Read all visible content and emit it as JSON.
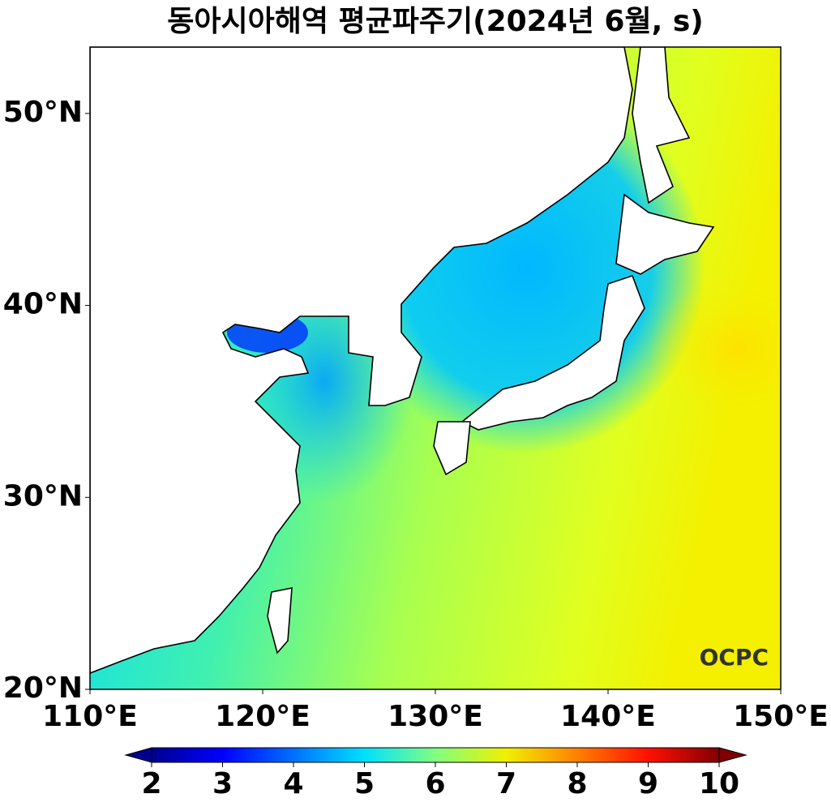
{
  "chart_data": {
    "type": "map",
    "title": "동아시아해역 평균파주기(2024년 6월, s)",
    "xlim": [
      110,
      150
    ],
    "ylim": [
      20,
      53.46
    ],
    "xticks": [
      {
        "value": 110,
        "label": "110°E"
      },
      {
        "value": 120,
        "label": "120°E"
      },
      {
        "value": 130,
        "label": "130°E"
      },
      {
        "value": 140,
        "label": "140°E"
      },
      {
        "value": 150,
        "label": "150°E"
      }
    ],
    "yticks": [
      {
        "value": 20,
        "label": "20°N"
      },
      {
        "value": 30,
        "label": "30°N"
      },
      {
        "value": 40,
        "label": "40°N"
      },
      {
        "value": 50,
        "label": "50°N"
      }
    ],
    "colorbar": {
      "range": [
        2,
        10
      ],
      "ticks": [
        2,
        3,
        4,
        5,
        6,
        7,
        8,
        9,
        10
      ],
      "colormap": "jet",
      "extend": "both"
    },
    "logo": "OCPC"
  }
}
